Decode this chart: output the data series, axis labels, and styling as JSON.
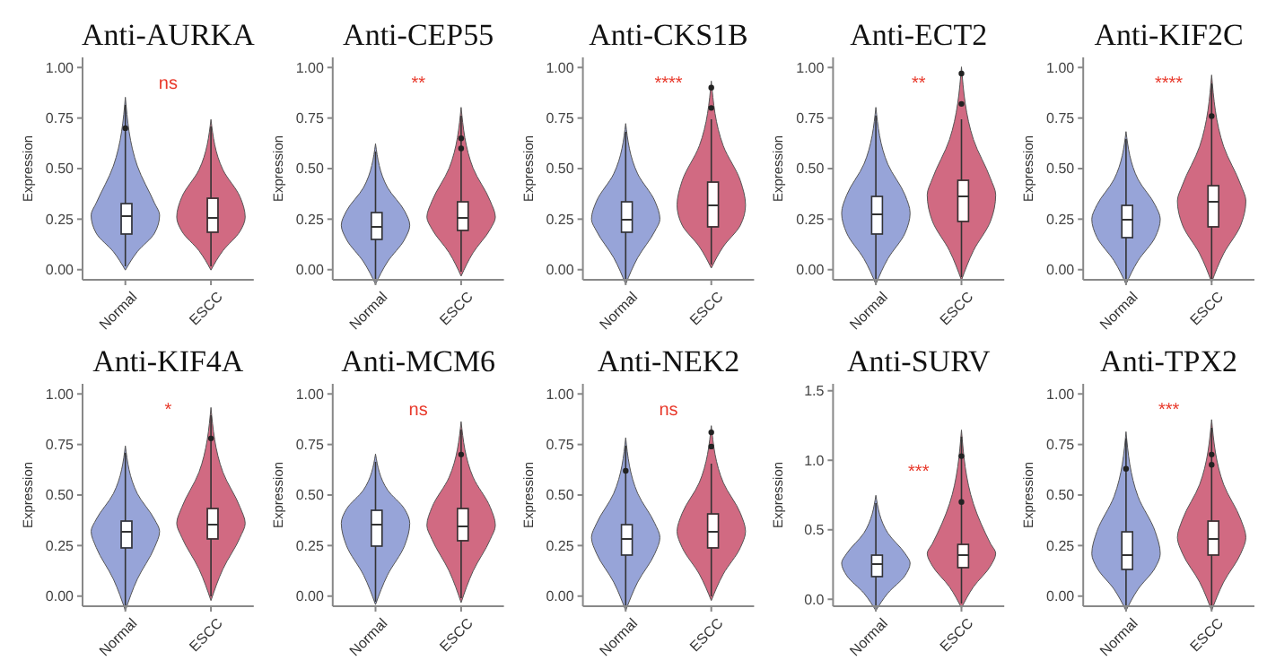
{
  "chart_data": [
    {
      "type": "box",
      "title": "Anti-AURKA",
      "ylabel": "Expression",
      "categories": [
        "Normal",
        "ESCC"
      ],
      "colors": [
        "#8c9ad4",
        "#cc5a74"
      ],
      "ylim": [
        -0.05,
        1.05
      ],
      "yticks": [
        {
          "value": 0,
          "label": "0.00"
        },
        {
          "value": 0.25,
          "label": "0.25"
        },
        {
          "value": 0.5,
          "label": "0.50"
        },
        {
          "value": 0.75,
          "label": "0.75"
        },
        {
          "value": 1,
          "label": "1.00"
        }
      ],
      "grid": false,
      "annotations": [
        "ns"
      ],
      "boxes": [
        {
          "low": 0.02,
          "q1": 0.18,
          "median": 0.27,
          "q3": 0.33,
          "high": 0.82,
          "outliers": [
            0.7
          ]
        },
        {
          "low": 0.02,
          "q1": 0.19,
          "median": 0.26,
          "q3": 0.36,
          "high": 0.71
        }
      ]
    },
    {
      "type": "box",
      "title": "Anti-CEP55",
      "ylabel": "Expression",
      "categories": [
        "Normal",
        "ESCC"
      ],
      "colors": [
        "#8c9ad4",
        "#cc5a74"
      ],
      "ylim": [
        -0.05,
        1.05
      ],
      "yticks": [
        {
          "value": 0,
          "label": "0.00"
        },
        {
          "value": 0.25,
          "label": "0.25"
        },
        {
          "value": 0.5,
          "label": "0.50"
        },
        {
          "value": 0.75,
          "label": "0.75"
        },
        {
          "value": 1,
          "label": "1.00"
        }
      ],
      "grid": false,
      "annotations": [
        "**"
      ],
      "boxes": [
        {
          "low": -0.05,
          "q1": 0.15,
          "median": 0.22,
          "q3": 0.29,
          "high": 0.59
        },
        {
          "low": -0.01,
          "q1": 0.2,
          "median": 0.26,
          "q3": 0.34,
          "high": 0.77,
          "outliers": [
            0.6,
            0.65
          ]
        }
      ]
    },
    {
      "type": "box",
      "title": "Anti-CKS1B",
      "ylabel": "Expression",
      "categories": [
        "Normal",
        "ESCC"
      ],
      "colors": [
        "#8c9ad4",
        "#cc5a74"
      ],
      "ylim": [
        -0.05,
        1.05
      ],
      "yticks": [
        {
          "value": 0,
          "label": "0.00"
        },
        {
          "value": 0.25,
          "label": "0.25"
        },
        {
          "value": 0.5,
          "label": "0.50"
        },
        {
          "value": 0.75,
          "label": "0.75"
        },
        {
          "value": 1,
          "label": "1.00"
        }
      ],
      "grid": false,
      "annotations": [
        "****"
      ],
      "boxes": [
        {
          "low": -0.05,
          "q1": 0.19,
          "median": 0.25,
          "q3": 0.34,
          "high": 0.69
        },
        {
          "low": 0.03,
          "q1": 0.22,
          "median": 0.32,
          "q3": 0.44,
          "high": 0.75,
          "outliers": [
            0.8,
            0.9
          ]
        }
      ]
    },
    {
      "type": "box",
      "title": "Anti-ECT2",
      "ylabel": "Expression",
      "categories": [
        "Normal",
        "ESCC"
      ],
      "colors": [
        "#8c9ad4",
        "#cc5a74"
      ],
      "ylim": [
        -0.05,
        1.05
      ],
      "yticks": [
        {
          "value": 0,
          "label": "0.00"
        },
        {
          "value": 0.25,
          "label": "0.25"
        },
        {
          "value": 0.5,
          "label": "0.50"
        },
        {
          "value": 0.75,
          "label": "0.75"
        },
        {
          "value": 1,
          "label": "1.00"
        }
      ],
      "grid": false,
      "annotations": [
        "**"
      ],
      "boxes": [
        {
          "low": -0.05,
          "q1": 0.18,
          "median": 0.28,
          "q3": 0.37,
          "high": 0.77
        },
        {
          "low": -0.03,
          "q1": 0.24,
          "median": 0.37,
          "q3": 0.45,
          "high": 0.75,
          "outliers": [
            0.82,
            0.97
          ]
        }
      ]
    },
    {
      "type": "box",
      "title": "Anti-KIF2C",
      "ylabel": "Expression",
      "categories": [
        "Normal",
        "ESCC"
      ],
      "colors": [
        "#8c9ad4",
        "#cc5a74"
      ],
      "ylim": [
        -0.05,
        1.05
      ],
      "yticks": [
        {
          "value": 0,
          "label": "0.00"
        },
        {
          "value": 0.25,
          "label": "0.25"
        },
        {
          "value": 0.5,
          "label": "0.50"
        },
        {
          "value": 0.75,
          "label": "0.75"
        },
        {
          "value": 1,
          "label": "1.00"
        }
      ],
      "grid": false,
      "annotations": [
        "****"
      ],
      "boxes": [
        {
          "low": -0.05,
          "q1": 0.16,
          "median": 0.25,
          "q3": 0.32,
          "high": 0.65
        },
        {
          "low": -0.04,
          "q1": 0.22,
          "median": 0.34,
          "q3": 0.42,
          "high": 0.93,
          "outliers": [
            0.76
          ]
        }
      ]
    },
    {
      "type": "box",
      "title": "Anti-KIF4A",
      "ylabel": "Expression",
      "categories": [
        "Normal",
        "ESCC"
      ],
      "colors": [
        "#8c9ad4",
        "#cc5a74"
      ],
      "ylim": [
        -0.05,
        1.05
      ],
      "yticks": [
        {
          "value": 0,
          "label": "0.00"
        },
        {
          "value": 0.25,
          "label": "0.25"
        },
        {
          "value": 0.5,
          "label": "0.50"
        },
        {
          "value": 0.75,
          "label": "0.75"
        },
        {
          "value": 1,
          "label": "1.00"
        }
      ],
      "grid": false,
      "annotations": [
        "*"
      ],
      "boxes": [
        {
          "low": -0.05,
          "q1": 0.24,
          "median": 0.32,
          "q3": 0.38,
          "high": 0.71
        },
        {
          "low": 0.0,
          "q1": 0.29,
          "median": 0.36,
          "q3": 0.44,
          "high": 0.9,
          "outliers": [
            0.78
          ]
        }
      ]
    },
    {
      "type": "box",
      "title": "Anti-MCM6",
      "ylabel": "Expression",
      "categories": [
        "Normal",
        "ESCC"
      ],
      "colors": [
        "#8c9ad4",
        "#cc5a74"
      ],
      "ylim": [
        -0.05,
        1.05
      ],
      "yticks": [
        {
          "value": 0,
          "label": "0.00"
        },
        {
          "value": 0.25,
          "label": "0.25"
        },
        {
          "value": 0.5,
          "label": "0.50"
        },
        {
          "value": 0.75,
          "label": "0.75"
        },
        {
          "value": 1,
          "label": "1.00"
        }
      ],
      "grid": false,
      "annotations": [
        "ns"
      ],
      "boxes": [
        {
          "low": -0.02,
          "q1": 0.25,
          "median": 0.36,
          "q3": 0.43,
          "high": 0.67
        },
        {
          "low": -0.01,
          "q1": 0.28,
          "median": 0.35,
          "q3": 0.44,
          "high": 0.83,
          "outliers": [
            0.7
          ]
        }
      ]
    },
    {
      "type": "box",
      "title": "Anti-NEK2",
      "ylabel": "Expression",
      "categories": [
        "Normal",
        "ESCC"
      ],
      "colors": [
        "#8c9ad4",
        "#cc5a74"
      ],
      "ylim": [
        -0.05,
        1.05
      ],
      "yticks": [
        {
          "value": 0,
          "label": "0.00"
        },
        {
          "value": 0.25,
          "label": "0.25"
        },
        {
          "value": 0.5,
          "label": "0.50"
        },
        {
          "value": 0.75,
          "label": "0.75"
        },
        {
          "value": 1,
          "label": "1.00"
        }
      ],
      "grid": false,
      "annotations": [
        "ns"
      ],
      "boxes": [
        {
          "low": -0.05,
          "q1": 0.21,
          "median": 0.29,
          "q3": 0.36,
          "high": 0.75,
          "outliers": [
            0.62
          ]
        },
        {
          "low": 0.0,
          "q1": 0.24,
          "median": 0.32,
          "q3": 0.41,
          "high": 0.66,
          "outliers": [
            0.74,
            0.81
          ]
        }
      ]
    },
    {
      "type": "box",
      "title": "Anti-SURV",
      "ylabel": "Expression",
      "categories": [
        "Normal",
        "ESCC"
      ],
      "colors": [
        "#8c9ad4",
        "#cc5a74"
      ],
      "ylim": [
        -0.05,
        1.55
      ],
      "yticks": [
        {
          "value": 0,
          "label": "0.0"
        },
        {
          "value": 0.5,
          "label": "0.5"
        },
        {
          "value": 1,
          "label": "1.0"
        },
        {
          "value": 1.5,
          "label": "1.5"
        }
      ],
      "grid": false,
      "annotations": [
        "***"
      ],
      "boxes": [
        {
          "low": -0.05,
          "q1": 0.17,
          "median": 0.26,
          "q3": 0.33,
          "high": 0.7
        },
        {
          "low": -0.03,
          "q1": 0.24,
          "median": 0.33,
          "q3": 0.4,
          "high": 1.17,
          "outliers": [
            0.7,
            1.03
          ]
        }
      ]
    },
    {
      "type": "box",
      "title": "Anti-TPX2",
      "ylabel": "Expression",
      "categories": [
        "Normal",
        "ESCC"
      ],
      "colors": [
        "#8c9ad4",
        "#cc5a74"
      ],
      "ylim": [
        -0.05,
        1.05
      ],
      "yticks": [
        {
          "value": 0,
          "label": "0.00"
        },
        {
          "value": 0.25,
          "label": "0.25"
        },
        {
          "value": 0.5,
          "label": "0.50"
        },
        {
          "value": 0.75,
          "label": "0.75"
        },
        {
          "value": 1,
          "label": "1.00"
        }
      ],
      "grid": false,
      "annotations": [
        "***"
      ],
      "boxes": [
        {
          "low": -0.05,
          "q1": 0.14,
          "median": 0.21,
          "q3": 0.32,
          "high": 0.78,
          "outliers": [
            0.63
          ]
        },
        {
          "low": -0.05,
          "q1": 0.21,
          "median": 0.29,
          "q3": 0.38,
          "high": 0.84,
          "outliers": [
            0.65,
            0.7
          ]
        }
      ]
    }
  ]
}
